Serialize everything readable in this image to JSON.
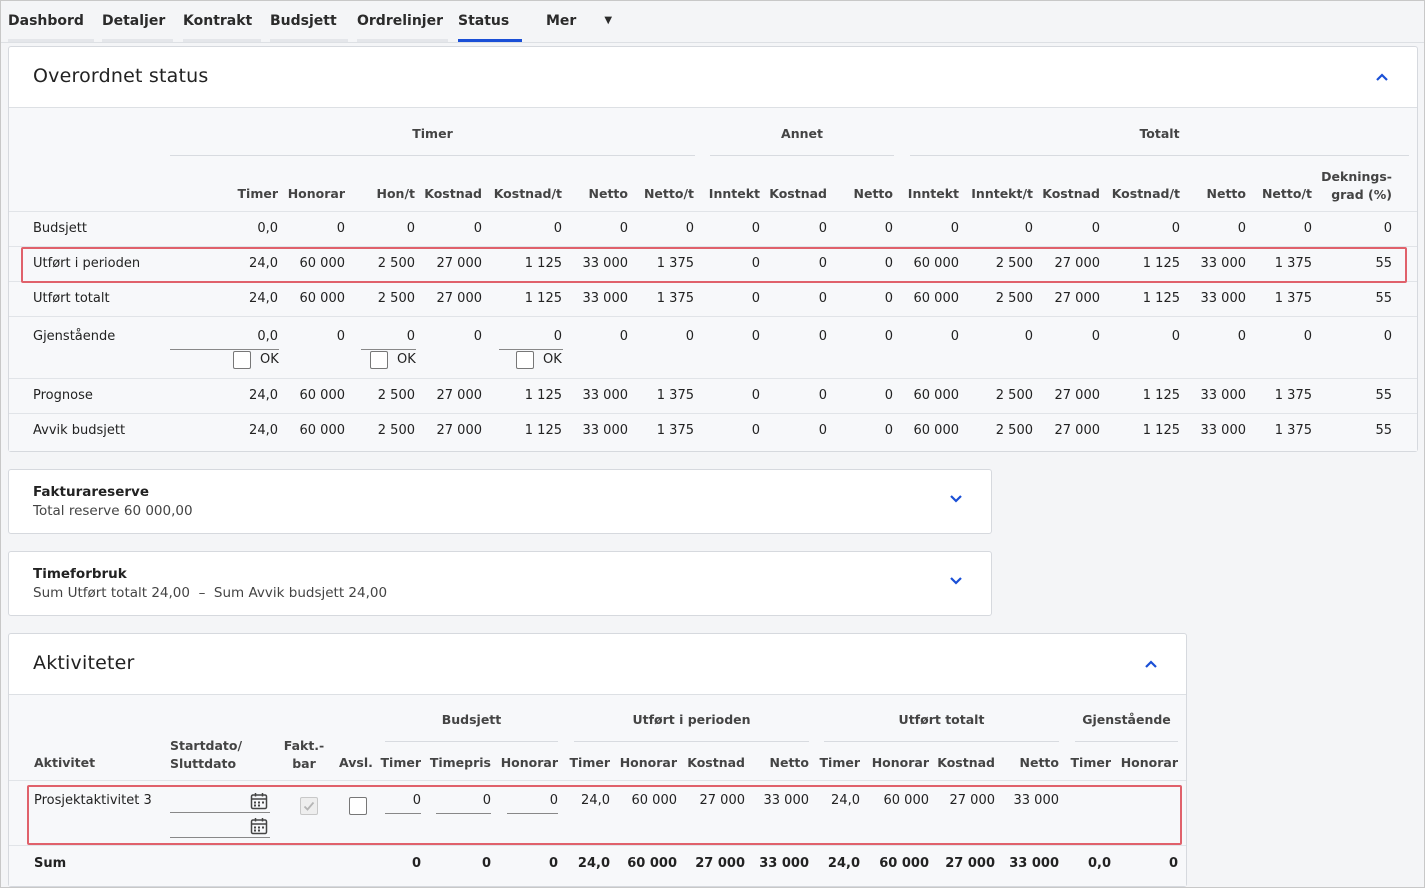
{
  "tabs": [
    {
      "label": "Dashbord"
    },
    {
      "label": "Detaljer"
    },
    {
      "label": "Kontrakt"
    },
    {
      "label": "Budsjett"
    },
    {
      "label": "Ordrelinjer"
    },
    {
      "label": "Status",
      "active": true
    },
    {
      "label": "Mer"
    }
  ],
  "overview": {
    "title": "Overordnet status",
    "groups": {
      "timer": "Timer",
      "annet": "Annet",
      "totalt": "Totalt"
    },
    "columns": [
      "Timer",
      "Honorar",
      "Hon/t",
      "Kostnad",
      "Kostnad/t",
      "Netto",
      "Netto/t",
      "Inntekt",
      "Kostnad",
      "Netto",
      "Inntekt",
      "Inntekt/t",
      "Kostnad",
      "Kostnad/t",
      "Netto",
      "Netto/t"
    ],
    "col_dekning_1": "Deknings-",
    "col_dekning_2": "grad (%)",
    "ok_label": "OK",
    "rows": [
      {
        "label": "Budsjett",
        "values": [
          "0,0",
          "0",
          "0",
          "0",
          "0",
          "0",
          "0",
          "0",
          "0",
          "0",
          "0",
          "0",
          "0",
          "0",
          "0",
          "0",
          "0"
        ]
      },
      {
        "label": "Utført i perioden",
        "values": [
          "24,0",
          "60 000",
          "2 500",
          "27 000",
          "1 125",
          "33 000",
          "1 375",
          "0",
          "0",
          "0",
          "60 000",
          "2 500",
          "27 000",
          "1 125",
          "33 000",
          "1 375",
          "55"
        ]
      },
      {
        "label": "Utført totalt",
        "values": [
          "24,0",
          "60 000",
          "2 500",
          "27 000",
          "1 125",
          "33 000",
          "1 375",
          "0",
          "0",
          "0",
          "60 000",
          "2 500",
          "27 000",
          "1 125",
          "33 000",
          "1 375",
          "55"
        ]
      },
      {
        "label": "Gjenstående",
        "values": [
          "0,0",
          "0",
          "0",
          "0",
          "0",
          "0",
          "0",
          "0",
          "0",
          "0",
          "0",
          "0",
          "0",
          "0",
          "0",
          "0",
          "0"
        ]
      },
      {
        "label": "Prognose",
        "values": [
          "24,0",
          "60 000",
          "2 500",
          "27 000",
          "1 125",
          "33 000",
          "1 375",
          "0",
          "0",
          "0",
          "60 000",
          "2 500",
          "27 000",
          "1 125",
          "33 000",
          "1 375",
          "55"
        ]
      },
      {
        "label": "Avvik budsjett",
        "values": [
          "24,0",
          "60 000",
          "2 500",
          "27 000",
          "1 125",
          "33 000",
          "1 375",
          "0",
          "0",
          "0",
          "60 000",
          "2 500",
          "27 000",
          "1 125",
          "33 000",
          "1 375",
          "55"
        ]
      }
    ]
  },
  "fakturareserve": {
    "title": "Fakturareserve",
    "detail": "Total reserve 60 000,00"
  },
  "timeforbruk": {
    "title": "Timeforbruk",
    "detail": "Sum Utført totalt 24,00  –  Sum Avvik budsjett 24,00"
  },
  "activities": {
    "title": "Aktiviteter",
    "groups": {
      "budsjett": "Budsjett",
      "periode": "Utført i perioden",
      "totalt": "Utført totalt",
      "gjen": "Gjenstående"
    },
    "head": {
      "aktivitet": "Aktivitet",
      "dato1": "Startdato/",
      "dato2": "Sluttdato",
      "fakt1": "Fakt.-",
      "fakt2": "bar",
      "avsl": "Avsl.",
      "cols": [
        "Timer",
        "Timepris",
        "Honorar",
        "Timer",
        "Honorar",
        "Kostnad",
        "Netto",
        "Timer",
        "Honorar",
        "Kostnad",
        "Netto",
        "Timer",
        "Honorar"
      ]
    },
    "row": {
      "name": "Prosjektaktivitet 3",
      "inputs": [
        "0",
        "0",
        "0"
      ],
      "values": [
        "24,0",
        "60 000",
        "27 000",
        "33 000",
        "24,0",
        "60 000",
        "27 000",
        "33 000"
      ],
      "faktbar_checked": true,
      "avsl_checked": false
    },
    "sum": {
      "label": "Sum",
      "values": [
        "0",
        "0",
        "0",
        "24,0",
        "60 000",
        "27 000",
        "33 000",
        "24,0",
        "60 000",
        "27 000",
        "33 000",
        "0,0",
        "0"
      ]
    }
  }
}
